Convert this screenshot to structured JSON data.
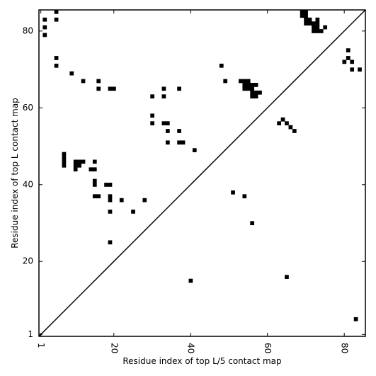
{
  "chart_data": {
    "type": "heatmap",
    "title": "",
    "xlabel": "Residue index of top L/5 contact map",
    "ylabel": "Residue index of top L contact map",
    "xlim": [
      0.5,
      85.5
    ],
    "ylim": [
      0.5,
      85.5
    ],
    "xticks": [
      1,
      20,
      40,
      60,
      80
    ],
    "xtick_labels": [
      "1",
      "20",
      "40",
      "60",
      "80"
    ],
    "yticks": [
      1,
      20,
      40,
      60,
      80
    ],
    "ytick_labels": [
      "1",
      "20",
      "40",
      "60",
      "80"
    ],
    "x_tick_label_rotation": 90,
    "grid": false,
    "legend": "none",
    "diagonal_line": true,
    "marker_color": "#000000",
    "upper_triangle_contacts": [
      [
        2,
        83
      ],
      [
        2,
        81
      ],
      [
        2,
        79
      ],
      [
        5,
        85
      ],
      [
        5,
        83
      ],
      [
        5,
        73
      ],
      [
        5,
        71
      ],
      [
        9,
        69
      ],
      [
        12,
        67
      ],
      [
        16,
        67
      ],
      [
        16,
        65
      ],
      [
        19,
        65
      ],
      [
        20,
        65
      ],
      [
        30,
        63
      ],
      [
        30,
        58
      ],
      [
        30,
        56
      ],
      [
        33,
        65
      ],
      [
        33,
        63
      ],
      [
        33,
        56
      ],
      [
        34,
        56
      ],
      [
        48,
        71
      ],
      [
        49,
        67
      ],
      [
        53,
        67
      ],
      [
        54,
        67
      ],
      [
        55,
        67
      ],
      [
        54,
        66
      ],
      [
        55,
        66
      ],
      [
        56,
        66
      ],
      [
        57,
        66
      ],
      [
        54,
        65
      ],
      [
        55,
        65
      ],
      [
        56,
        65
      ],
      [
        56,
        64
      ],
      [
        57,
        64
      ],
      [
        58,
        64
      ],
      [
        56,
        63
      ],
      [
        57,
        63
      ],
      [
        37,
        65
      ],
      [
        69,
        85
      ],
      [
        70,
        85
      ],
      [
        69,
        84
      ],
      [
        70,
        84
      ],
      [
        70,
        83
      ],
      [
        71,
        83
      ],
      [
        73,
        83
      ],
      [
        70,
        82
      ],
      [
        71,
        82
      ],
      [
        72,
        82
      ],
      [
        73,
        82
      ],
      [
        72,
        81
      ],
      [
        73,
        81
      ],
      [
        75,
        81
      ],
      [
        72,
        80
      ],
      [
        73,
        80
      ],
      [
        74,
        80
      ]
    ],
    "lower_triangle_contacts": [
      [
        34,
        54
      ],
      [
        37,
        54
      ],
      [
        34,
        51
      ],
      [
        37,
        51
      ],
      [
        38,
        51
      ],
      [
        41,
        49
      ],
      [
        7,
        48
      ],
      [
        7,
        47
      ],
      [
        7,
        46
      ],
      [
        7,
        45
      ],
      [
        10,
        46
      ],
      [
        11,
        46
      ],
      [
        12,
        46
      ],
      [
        15,
        46
      ],
      [
        10,
        45
      ],
      [
        11,
        45
      ],
      [
        10,
        44
      ],
      [
        14,
        44
      ],
      [
        15,
        44
      ],
      [
        15,
        41
      ],
      [
        15,
        40
      ],
      [
        18,
        40
      ],
      [
        19,
        40
      ],
      [
        15,
        37
      ],
      [
        16,
        37
      ],
      [
        19,
        37
      ],
      [
        19,
        36
      ],
      [
        22,
        36
      ],
      [
        28,
        36
      ],
      [
        19,
        33
      ],
      [
        25,
        33
      ],
      [
        19,
        25
      ],
      [
        51,
        38
      ],
      [
        54,
        37
      ],
      [
        56,
        30
      ],
      [
        63,
        56
      ],
      [
        64,
        57
      ],
      [
        65,
        56
      ],
      [
        66,
        55
      ],
      [
        67,
        54
      ],
      [
        80,
        72
      ],
      [
        81,
        73
      ],
      [
        81,
        75
      ],
      [
        82,
        72
      ],
      [
        82,
        70
      ],
      [
        84,
        70
      ],
      [
        40,
        15
      ],
      [
        65,
        16
      ],
      [
        83,
        5
      ]
    ]
  }
}
